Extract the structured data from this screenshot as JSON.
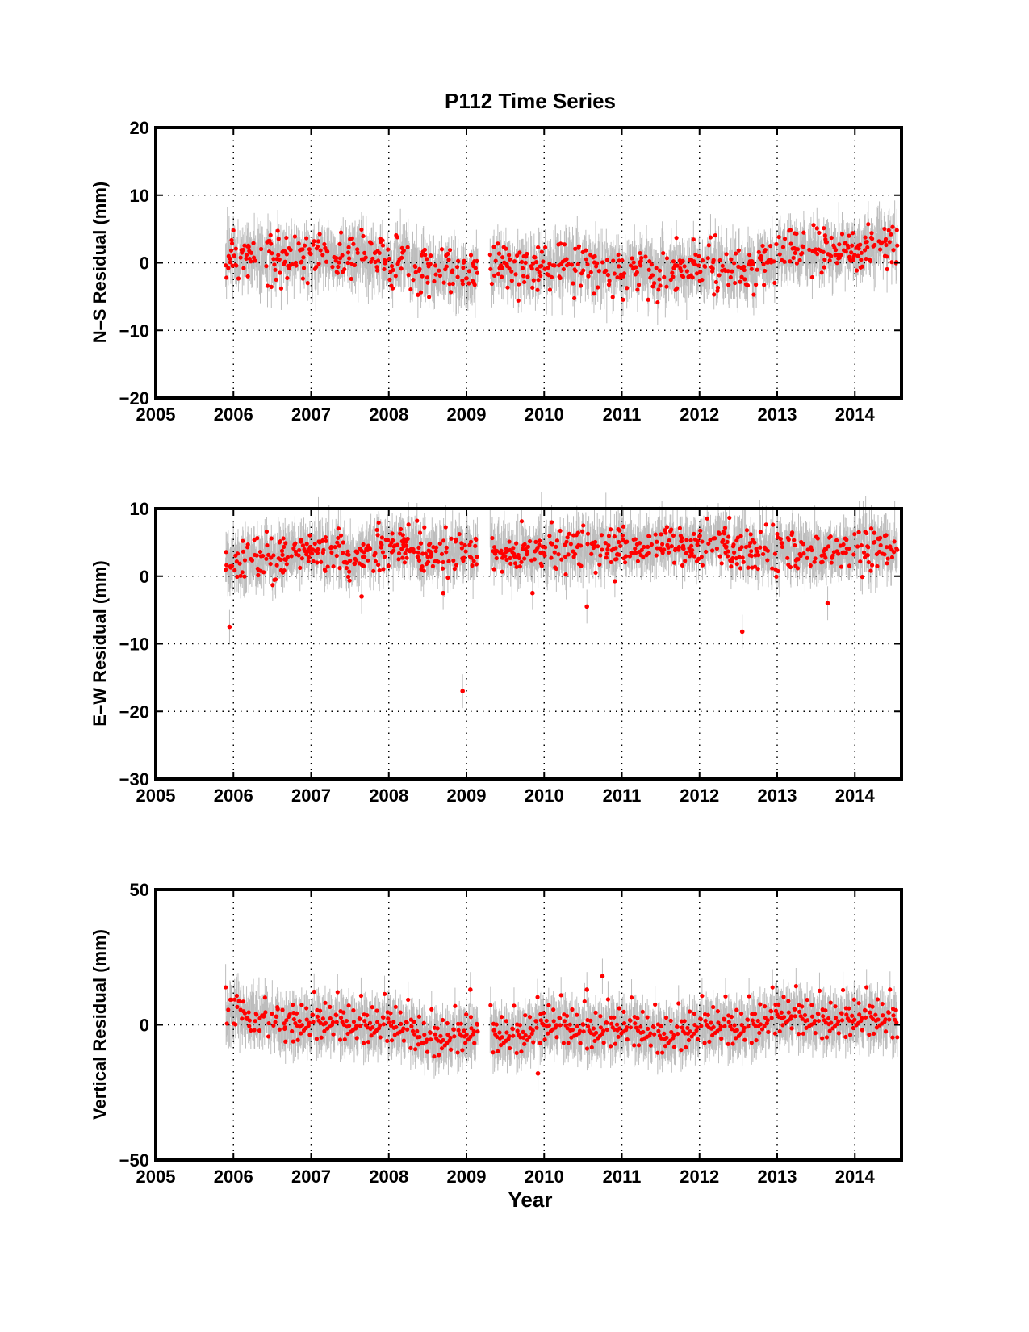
{
  "title": "P112 Time Series",
  "colors": {
    "points": "#ff0000",
    "error_bars": "#bdbdbd",
    "axes": "#000000",
    "grid": "#000000"
  },
  "chart_data": [
    {
      "type": "scatter",
      "ylabel": "N–S Residual (mm)",
      "xlabel": "",
      "xlim": [
        2005,
        2014.6
      ],
      "ylim": [
        -20,
        20
      ],
      "xticks": [
        2005,
        2006,
        2007,
        2008,
        2009,
        2010,
        2011,
        2012,
        2013,
        2014
      ],
      "xtick_labels": [
        "2005",
        "2006",
        "2007",
        "2008",
        "2009",
        "2010",
        "2011",
        "2012",
        "2013",
        "2014"
      ],
      "yticks": [
        -20,
        -10,
        0,
        10,
        20
      ],
      "ytick_labels": [
        "−20",
        "−10",
        "0",
        "10",
        "20"
      ],
      "grid": "dotted",
      "data_gap": [
        2009.15,
        2009.3
      ],
      "trend": [
        [
          2005.9,
          1.0
        ],
        [
          2006.5,
          1.3
        ],
        [
          2007.0,
          0.2
        ],
        [
          2007.6,
          1.5
        ],
        [
          2008.2,
          -0.5
        ],
        [
          2008.7,
          -1.0
        ],
        [
          2009.1,
          -2.0
        ],
        [
          2009.3,
          -0.8
        ],
        [
          2010.0,
          -0.5
        ],
        [
          2010.5,
          -0.3
        ],
        [
          2011.0,
          -1.2
        ],
        [
          2011.5,
          -1.5
        ],
        [
          2012.0,
          -1.0
        ],
        [
          2012.5,
          -0.8
        ],
        [
          2013.0,
          0.5
        ],
        [
          2013.5,
          1.8
        ],
        [
          2014.0,
          2.2
        ],
        [
          2014.55,
          3.0
        ]
      ]
    },
    {
      "type": "scatter",
      "ylabel": "E–W Residual (mm)",
      "xlabel": "",
      "xlim": [
        2005,
        2014.6
      ],
      "ylim": [
        -30,
        10
      ],
      "xticks": [
        2005,
        2006,
        2007,
        2008,
        2009,
        2010,
        2011,
        2012,
        2013,
        2014
      ],
      "xtick_labels": [
        "2005",
        "2006",
        "2007",
        "2008",
        "2009",
        "2010",
        "2011",
        "2012",
        "2013",
        "2014"
      ],
      "yticks": [
        -30,
        -20,
        -10,
        0,
        10
      ],
      "ytick_labels": [
        "−30",
        "−20",
        "−10",
        "0",
        "10"
      ],
      "grid": "dotted",
      "data_gap": [
        2009.15,
        2009.3
      ],
      "trend": [
        [
          2005.9,
          1.8
        ],
        [
          2006.5,
          3.0
        ],
        [
          2007.0,
          3.8
        ],
        [
          2007.5,
          3.2
        ],
        [
          2008.0,
          4.5
        ],
        [
          2008.5,
          3.5
        ],
        [
          2009.1,
          3.8
        ],
        [
          2009.3,
          3.3
        ],
        [
          2010.0,
          3.8
        ],
        [
          2010.5,
          4.0
        ],
        [
          2011.0,
          4.5
        ],
        [
          2011.5,
          4.2
        ],
        [
          2012.0,
          5.0
        ],
        [
          2012.5,
          4.3
        ],
        [
          2013.0,
          3.6
        ],
        [
          2013.5,
          3.5
        ],
        [
          2014.0,
          4.0
        ],
        [
          2014.55,
          4.0
        ]
      ],
      "outliers": [
        [
          2005.95,
          -7.5
        ],
        [
          2008.95,
          -17.0
        ],
        [
          2009.85,
          -2.5
        ],
        [
          2010.55,
          -4.5
        ],
        [
          2012.55,
          -8.2
        ],
        [
          2013.65,
          -4.0
        ],
        [
          2007.65,
          -3.0
        ],
        [
          2008.7,
          -2.5
        ]
      ]
    },
    {
      "type": "scatter",
      "ylabel": "Vertical Residual (mm)",
      "xlabel": "Year",
      "xlim": [
        2005,
        2014.6
      ],
      "ylim": [
        -50,
        50
      ],
      "xticks": [
        2005,
        2006,
        2007,
        2008,
        2009,
        2010,
        2011,
        2012,
        2013,
        2014
      ],
      "xtick_labels": [
        "2005",
        "2006",
        "2007",
        "2008",
        "2009",
        "2010",
        "2011",
        "2012",
        "2013",
        "2014"
      ],
      "yticks": [
        -50,
        0,
        50
      ],
      "ytick_labels": [
        "−50",
        "0",
        "50"
      ],
      "grid": "dotted",
      "data_gap": [
        2009.15,
        2009.3
      ],
      "trend": [
        [
          2005.9,
          4.0
        ],
        [
          2006.5,
          1.0
        ],
        [
          2007.0,
          1.5
        ],
        [
          2007.6,
          0.5
        ],
        [
          2008.0,
          1.0
        ],
        [
          2008.5,
          -5.0
        ],
        [
          2009.1,
          -2.0
        ],
        [
          2009.3,
          -4.0
        ],
        [
          2009.7,
          -3.0
        ],
        [
          2010.0,
          1.0
        ],
        [
          2010.5,
          -2.0
        ],
        [
          2011.0,
          0.0
        ],
        [
          2011.5,
          -4.0
        ],
        [
          2012.0,
          0.0
        ],
        [
          2012.5,
          -1.0
        ],
        [
          2013.0,
          4.0
        ],
        [
          2013.5,
          2.0
        ],
        [
          2014.0,
          3.0
        ],
        [
          2014.55,
          2.0
        ]
      ],
      "outliers": [
        [
          2009.92,
          -18.0
        ],
        [
          2010.75,
          18.0
        ],
        [
          2010.55,
          13.0
        ],
        [
          2009.05,
          13.0
        ]
      ]
    }
  ]
}
